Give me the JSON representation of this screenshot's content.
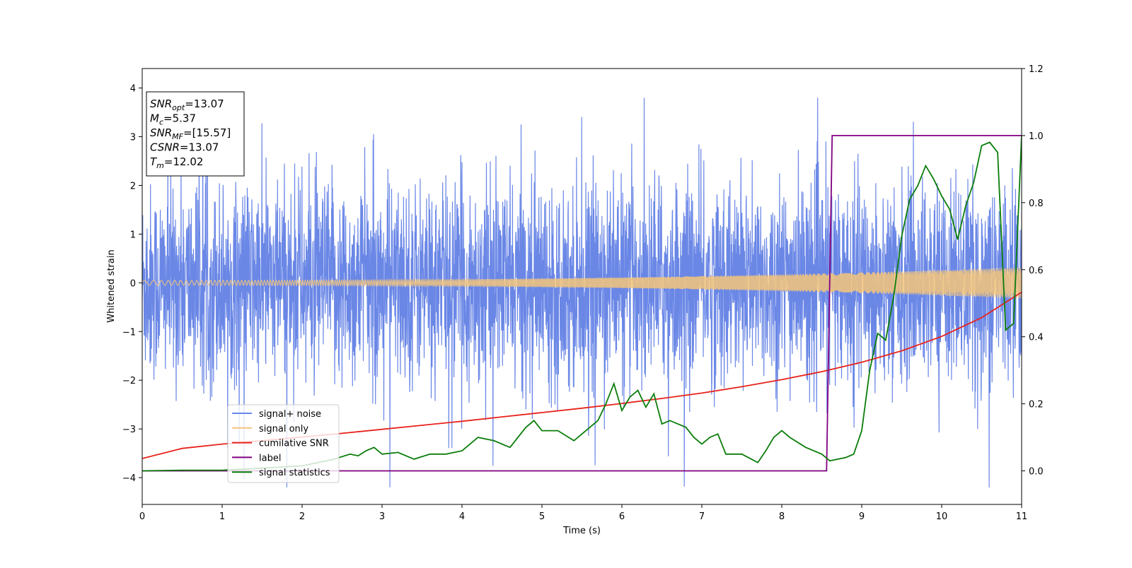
{
  "chart_data": {
    "type": "line",
    "xlabel": "Time (s)",
    "ylabel": "Whitened strain",
    "xlim": [
      0,
      11
    ],
    "ylim": [
      -4.55,
      4.4
    ],
    "y2lim": [
      -0.1,
      1.2
    ],
    "x_ticks": [
      "0",
      "1",
      "2",
      "3",
      "4",
      "5",
      "6",
      "7",
      "8",
      "9",
      "10",
      "11"
    ],
    "y_ticks": [
      "4",
      "3",
      "2",
      "1",
      "0",
      "−1",
      "−2",
      "−3",
      "−4"
    ],
    "y_tick_values": [
      4,
      3,
      2,
      1,
      0,
      -1,
      -2,
      -3,
      -4
    ],
    "y2_ticks": [
      "1.2",
      "1.0",
      "0.8",
      "0.6",
      "0.4",
      "0.2",
      "0.0"
    ],
    "y2_tick_values": [
      1.2,
      1.0,
      0.8,
      0.6,
      0.4,
      0.2,
      0.0
    ],
    "grid": false,
    "legend_position": "lower-left",
    "info_box": {
      "lines": [
        {
          "name": "SNR",
          "sub": "opt",
          "value": "=13.07"
        },
        {
          "name": "M",
          "sub": "c",
          "value": "=5.37"
        },
        {
          "name": "SNR",
          "sub": "MF",
          "value": "=[15.57]"
        },
        {
          "name": "CSNR",
          "sub": "",
          "value": "=13.07"
        },
        {
          "name": "T",
          "sub": "m",
          "value": "=12.02"
        }
      ]
    },
    "series": [
      {
        "name": "signal+ noise",
        "color": "#6a87e6",
        "axis": "left",
        "kind": "noise",
        "sigma": 1.0,
        "peak_range": [
          -4.2,
          3.8
        ]
      },
      {
        "name": "signal only",
        "color": "#f5c57a",
        "axis": "left",
        "kind": "chirp",
        "amp_start": 0.05,
        "amp_end": 0.32
      },
      {
        "name": "cumilative SNR",
        "color": "#e8221b",
        "axis": "right",
        "x": [
          0,
          0.5,
          1,
          1.5,
          2,
          2.5,
          3,
          3.5,
          4,
          4.5,
          5,
          5.5,
          6,
          6.5,
          7,
          7.5,
          8,
          8.5,
          9,
          9.5,
          10,
          10.5,
          11
        ],
        "y": [
          0.037,
          0.067,
          0.08,
          0.09,
          0.101,
          0.112,
          0.124,
          0.136,
          0.148,
          0.161,
          0.174,
          0.187,
          0.201,
          0.216,
          0.232,
          0.251,
          0.272,
          0.296,
          0.324,
          0.358,
          0.401,
          0.457,
          0.533
        ]
      },
      {
        "name": "label",
        "color": "#800080",
        "axis": "right",
        "x": [
          0,
          8.56,
          8.63,
          11
        ],
        "y": [
          0,
          0,
          1,
          1
        ]
      },
      {
        "name": "signal statistics",
        "color": "#0a7d0a",
        "axis": "right",
        "x": [
          0,
          0.5,
          1.0,
          1.5,
          2.0,
          2.2,
          2.4,
          2.6,
          2.7,
          2.8,
          2.9,
          3.0,
          3.2,
          3.4,
          3.6,
          3.8,
          4.0,
          4.2,
          4.4,
          4.6,
          4.8,
          4.9,
          5.0,
          5.2,
          5.4,
          5.6,
          5.7,
          5.8,
          5.9,
          6.0,
          6.1,
          6.2,
          6.3,
          6.4,
          6.5,
          6.6,
          6.7,
          6.8,
          6.9,
          7.0,
          7.1,
          7.2,
          7.3,
          7.5,
          7.7,
          7.8,
          7.9,
          8.0,
          8.1,
          8.3,
          8.5,
          8.6,
          8.8,
          8.9,
          9.0,
          9.1,
          9.2,
          9.3,
          9.4,
          9.5,
          9.6,
          9.7,
          9.8,
          9.9,
          10.0,
          10.1,
          10.2,
          10.3,
          10.4,
          10.5,
          10.6,
          10.7,
          10.8,
          10.9,
          11.0
        ],
        "y": [
          0.0,
          0.002,
          0.002,
          0.008,
          0.015,
          0.025,
          0.035,
          0.05,
          0.045,
          0.06,
          0.07,
          0.05,
          0.055,
          0.035,
          0.05,
          0.05,
          0.06,
          0.1,
          0.09,
          0.07,
          0.13,
          0.15,
          0.12,
          0.12,
          0.09,
          0.13,
          0.15,
          0.2,
          0.26,
          0.18,
          0.22,
          0.24,
          0.19,
          0.23,
          0.14,
          0.15,
          0.14,
          0.13,
          0.1,
          0.08,
          0.1,
          0.11,
          0.05,
          0.05,
          0.025,
          0.06,
          0.1,
          0.12,
          0.1,
          0.07,
          0.05,
          0.03,
          0.04,
          0.05,
          0.12,
          0.3,
          0.41,
          0.39,
          0.52,
          0.7,
          0.81,
          0.85,
          0.91,
          0.87,
          0.82,
          0.78,
          0.69,
          0.79,
          0.86,
          0.97,
          0.98,
          0.95,
          0.42,
          0.44,
          1.0
        ]
      }
    ]
  }
}
